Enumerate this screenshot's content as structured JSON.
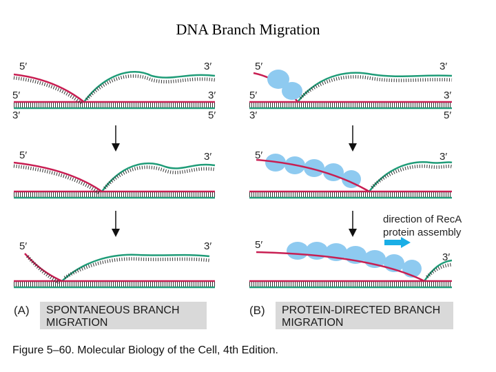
{
  "title": "DNA Branch Migration",
  "strand_labels": {
    "five_prime": "5′",
    "three_prime": "3′"
  },
  "panel_a": {
    "letter": "(A)",
    "caption_line1": "SPONTANEOUS BRANCH",
    "caption_line2": "MIGRATION"
  },
  "panel_b": {
    "letter": "(B)",
    "caption_line1": "PROTEIN-DIRECTED BRANCH",
    "caption_line2": "MIGRATION",
    "annotation_line1": "direction of RecA",
    "annotation_line2": "protein assembly"
  },
  "figure_caption": "Figure 5–60. Molecular Biology of the Cell, 4th Edition.",
  "colors": {
    "red_strand": "#c81e52",
    "green_strand": "#1f9c78",
    "duplex_rungs": "#333333",
    "reca_protein": "#8ecaf0",
    "arrow": "#1aaee6",
    "caption_box": "#d9d9d9"
  }
}
